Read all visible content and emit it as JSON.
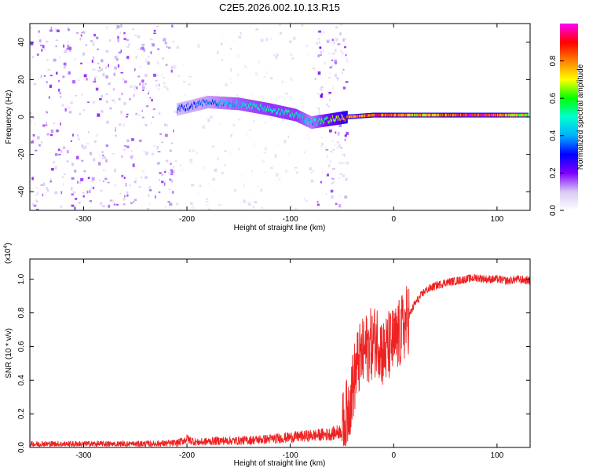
{
  "title": "C2E5.2026.002.10.13.R15",
  "chart_data": [
    {
      "type": "heatmap",
      "name": "spectrogram",
      "xlabel": "Height of straight line (km)",
      "ylabel": "Frequency (Hz)",
      "xlim": [
        -352,
        132
      ],
      "ylim": [
        -50,
        50
      ],
      "xticks": [
        -300,
        -200,
        -100,
        0,
        100
      ],
      "yticks": [
        -40,
        -20,
        0,
        20,
        40
      ],
      "colorbar": {
        "label": "Normalized spectral amplitude",
        "range": [
          0,
          1
        ],
        "ticks": [
          0.0,
          0.2,
          0.4,
          0.6,
          0.8
        ],
        "tick_labels": [
          "0.0",
          "0.2",
          "0.4",
          "0.6",
          "0.8"
        ],
        "colors": [
          "#ffffff",
          "#d8c8f4",
          "#7f00ff",
          "#0000ff",
          "#00b0ff",
          "#00ffd0",
          "#00ff00",
          "#ffff00",
          "#ff8000",
          "#ff0000",
          "#ff00ff"
        ]
      },
      "regions": [
        {
          "x_range": [
            -352,
            -213
          ],
          "f_range": [
            -50,
            50
          ],
          "amplitude": 0.12,
          "note": "scattered noise"
        },
        {
          "x_range": [
            -213,
            -45
          ],
          "f_range": [
            -50,
            50
          ],
          "amplitude": 0.05,
          "note": "sparse noise"
        },
        {
          "x_range": [
            -75,
            -70
          ],
          "f_range": [
            -50,
            50
          ],
          "amplitude": 0.15,
          "note": "vertical stripe"
        },
        {
          "x_range": [
            -66,
            -46
          ],
          "f_range": [
            -50,
            50
          ],
          "amplitude": 0.12,
          "note": "vertical band"
        }
      ],
      "ridge": [
        {
          "x": -210,
          "f": 4,
          "amplitude": 0.3
        },
        {
          "x": -180,
          "f": 8,
          "amplitude": 0.35
        },
        {
          "x": -150,
          "f": 7,
          "amplitude": 0.45
        },
        {
          "x": -120,
          "f": 4,
          "amplitude": 0.5
        },
        {
          "x": -95,
          "f": 1,
          "amplitude": 0.5
        },
        {
          "x": -80,
          "f": -3,
          "amplitude": 0.4
        },
        {
          "x": -45,
          "f": 0,
          "amplitude": 0.8
        },
        {
          "x": -20,
          "f": 1,
          "amplitude": 0.85
        },
        {
          "x": 30,
          "f": 1,
          "amplitude": 0.75
        },
        {
          "x": 70,
          "f": 1,
          "amplitude": 0.9
        },
        {
          "x": 90,
          "f": 1,
          "amplitude": 0.9
        },
        {
          "x": 130,
          "f": 1,
          "amplitude": 0.6
        }
      ]
    },
    {
      "type": "line",
      "name": "snr",
      "xlabel": "Height of straight line (km)",
      "ylabel": "SNR (10 * v/v)",
      "scale_label": "(x10",
      "scale_exponent": "4",
      "xlim": [
        -352,
        132
      ],
      "ylim": [
        0,
        1.12
      ],
      "xticks": [
        -300,
        -200,
        -100,
        0,
        100
      ],
      "yticks": [
        0.0,
        0.2,
        0.4,
        0.6,
        0.8,
        1.0
      ],
      "ytick_labels": [
        "0.0",
        "0.2",
        "0.4",
        "0.6",
        "0.8",
        "1.0"
      ],
      "color": "#ee2222",
      "series": [
        {
          "name": "SNR",
          "x": [
            -352,
            -300,
            -250,
            -210,
            -200,
            -190,
            -170,
            -150,
            -120,
            -100,
            -80,
            -60,
            -50,
            -45,
            -40,
            -35,
            -30,
            -25,
            -20,
            -15,
            -10,
            -5,
            0,
            5,
            10,
            15,
            20,
            30,
            40,
            50,
            60,
            70,
            80,
            90,
            100,
            110,
            120,
            132
          ],
          "y": [
            0.02,
            0.02,
            0.02,
            0.025,
            0.05,
            0.03,
            0.04,
            0.04,
            0.05,
            0.06,
            0.07,
            0.08,
            0.1,
            0.2,
            0.35,
            0.5,
            0.55,
            0.6,
            0.62,
            0.65,
            0.55,
            0.6,
            0.62,
            0.66,
            0.72,
            0.78,
            0.85,
            0.93,
            0.96,
            0.98,
            0.99,
            1.0,
            1.01,
            1.0,
            1.0,
            0.99,
            1.0,
            0.99
          ]
        }
      ]
    }
  ]
}
